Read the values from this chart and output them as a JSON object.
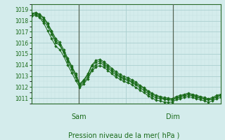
{
  "title": "",
  "xlabel": "Pression niveau de la mer( hPa )",
  "bg_color": "#d4ecec",
  "grid_color_major": "#aacfcf",
  "grid_color_minor": "#c4e2e2",
  "line_color": "#1a6b1a",
  "vline_color": "#556655",
  "ylim": [
    1010.5,
    1019.5
  ],
  "xlim": [
    0,
    48
  ],
  "yticks": [
    1011,
    1012,
    1013,
    1014,
    1015,
    1016,
    1017,
    1018,
    1019
  ],
  "day_labels": [
    [
      "Sam",
      12
    ],
    [
      "Dim",
      36
    ]
  ],
  "day_vlines": [
    12,
    36
  ],
  "series": [
    [
      1018.5,
      1018.6,
      1018.4,
      1018.0,
      1017.5,
      1016.8,
      1016.0,
      1015.8,
      1015.1,
      1014.3,
      1013.6,
      1012.9,
      1012.1,
      1012.45,
      1012.9,
      1013.6,
      1014.0,
      1014.2,
      1014.0,
      1013.7,
      1013.4,
      1013.1,
      1012.9,
      1012.7,
      1012.6,
      1012.4,
      1012.2,
      1011.9,
      1011.7,
      1011.4,
      1011.2,
      1011.0,
      1010.95,
      1010.9,
      1010.85,
      1010.8,
      1011.0,
      1011.1,
      1011.2,
      1011.3,
      1011.2,
      1011.1,
      1011.0,
      1010.9,
      1010.85,
      1010.9,
      1011.1,
      1011.2
    ],
    [
      1018.6,
      1018.7,
      1018.55,
      1018.2,
      1017.7,
      1017.0,
      1016.2,
      1015.9,
      1015.2,
      1014.5,
      1013.8,
      1013.1,
      1012.2,
      1012.6,
      1013.1,
      1013.9,
      1014.25,
      1014.35,
      1014.15,
      1013.85,
      1013.55,
      1013.25,
      1013.0,
      1012.8,
      1012.7,
      1012.5,
      1012.3,
      1012.05,
      1011.85,
      1011.55,
      1011.35,
      1011.15,
      1011.05,
      1010.95,
      1010.9,
      1010.85,
      1011.05,
      1011.15,
      1011.25,
      1011.35,
      1011.25,
      1011.15,
      1011.05,
      1010.95,
      1010.85,
      1010.95,
      1011.15,
      1011.25
    ],
    [
      1018.4,
      1018.5,
      1018.3,
      1017.8,
      1017.1,
      1016.4,
      1015.7,
      1015.4,
      1014.8,
      1014.0,
      1013.3,
      1012.6,
      1011.95,
      1012.3,
      1012.75,
      1013.45,
      1013.8,
      1013.95,
      1013.8,
      1013.5,
      1013.2,
      1012.9,
      1012.7,
      1012.5,
      1012.4,
      1012.2,
      1011.95,
      1011.7,
      1011.5,
      1011.2,
      1011.0,
      1010.8,
      1010.75,
      1010.65,
      1010.6,
      1010.65,
      1010.85,
      1010.95,
      1011.05,
      1011.15,
      1011.05,
      1010.95,
      1010.85,
      1010.75,
      1010.65,
      1010.75,
      1010.95,
      1011.05
    ],
    [
      1018.65,
      1018.75,
      1018.6,
      1018.3,
      1017.8,
      1017.1,
      1016.4,
      1016.05,
      1015.4,
      1014.6,
      1013.9,
      1013.2,
      1012.3,
      1012.65,
      1013.2,
      1014.0,
      1014.4,
      1014.5,
      1014.3,
      1014.0,
      1013.7,
      1013.4,
      1013.15,
      1012.95,
      1012.85,
      1012.65,
      1012.45,
      1012.15,
      1011.95,
      1011.65,
      1011.45,
      1011.25,
      1011.15,
      1011.05,
      1011.0,
      1010.95,
      1011.15,
      1011.25,
      1011.35,
      1011.45,
      1011.35,
      1011.25,
      1011.15,
      1011.05,
      1010.95,
      1011.05,
      1011.25,
      1011.35
    ]
  ]
}
